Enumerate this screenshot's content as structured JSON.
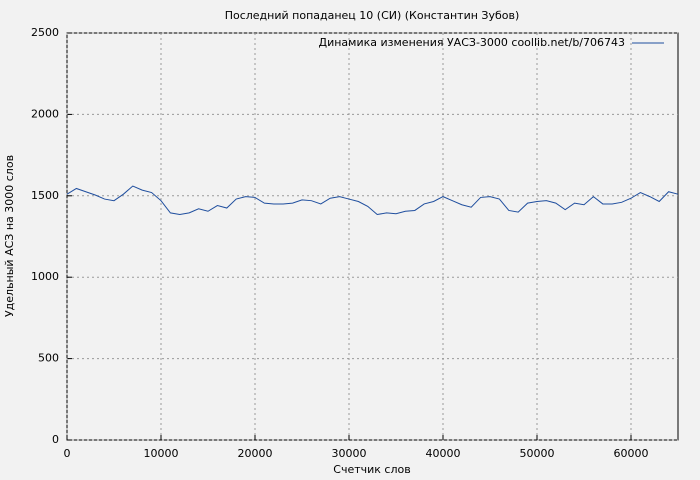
{
  "chart_data": {
    "type": "line",
    "title": "Последний попаданец 10 (СИ) (Константин Зубов)",
    "x_label": "Счетчик слов",
    "y_label": "Удельный АСЗ на 3000 слов",
    "x": [
      0,
      1000,
      2000,
      3000,
      4000,
      5000,
      6000,
      7000,
      8000,
      9000,
      10000,
      11000,
      12000,
      13000,
      14000,
      15000,
      16000,
      17000,
      18000,
      19000,
      20000,
      21000,
      22000,
      23000,
      24000,
      25000,
      26000,
      27000,
      28000,
      29000,
      30000,
      31000,
      32000,
      33000,
      34000,
      35000,
      36000,
      37000,
      38000,
      39000,
      40000,
      41000,
      42000,
      43000,
      44000,
      45000,
      46000,
      47000,
      48000,
      49000,
      50000,
      51000,
      52000,
      53000,
      54000,
      55000,
      56000,
      57000,
      58000,
      59000,
      60000,
      61000,
      62000,
      63000,
      64000,
      65000
    ],
    "series": [
      {
        "name": "Динамика изменения УАСЗ-3000 coollib.net/b/706743",
        "color": "#1f4e9e",
        "values": [
          1510,
          1545,
          1525,
          1505,
          1480,
          1470,
          1510,
          1560,
          1535,
          1520,
          1470,
          1395,
          1385,
          1395,
          1420,
          1405,
          1440,
          1425,
          1480,
          1495,
          1490,
          1455,
          1450,
          1450,
          1455,
          1475,
          1470,
          1450,
          1485,
          1495,
          1480,
          1465,
          1435,
          1385,
          1395,
          1390,
          1405,
          1410,
          1450,
          1465,
          1495,
          1470,
          1445,
          1430,
          1490,
          1495,
          1480,
          1410,
          1400,
          1455,
          1465,
          1470,
          1455,
          1415,
          1455,
          1445,
          1495,
          1450,
          1450,
          1460,
          1485,
          1520,
          1495,
          1465,
          1525,
          1510
        ]
      }
    ],
    "xlim": [
      0,
      65000
    ],
    "ylim": [
      0,
      2500
    ],
    "xticks": [
      0,
      10000,
      20000,
      30000,
      40000,
      50000,
      60000
    ],
    "yticks": [
      0,
      500,
      1000,
      1500,
      2000,
      2500
    ],
    "grid": true,
    "legend": "top-right"
  }
}
